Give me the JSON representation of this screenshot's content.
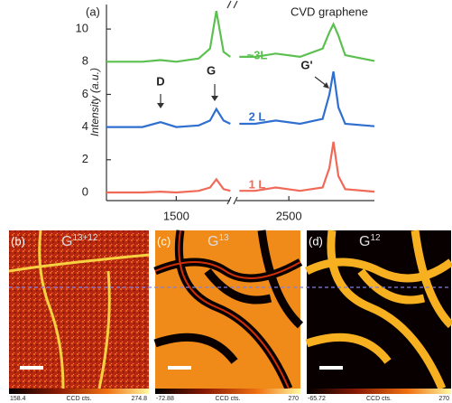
{
  "chart_data": {
    "type": "line",
    "panel_label": "(a)",
    "title": "CVD graphene",
    "ylabel": "Intensity (a.u.)",
    "annotations": [
      "D",
      "G",
      "G'"
    ],
    "x": [
      880,
      1200,
      1360,
      1500,
      1700,
      1800,
      1856,
      1920,
      1980,
      2000,
      2060,
      2200,
      2384,
      2600,
      2800,
      2860,
      2896,
      2940,
      3000,
      3260
    ],
    "series": [
      {
        "name": "1 L",
        "color": "#f06a58",
        "values": [
          0,
          0,
          0.05,
          0,
          0.1,
          0.3,
          0.8,
          0.2,
          0.1,
          null,
          0.1,
          0.1,
          0.3,
          0.1,
          0.3,
          1.5,
          3.1,
          1.0,
          0.2,
          0.05
        ]
      },
      {
        "name": "2 L",
        "color": "#2f6fd0",
        "values": [
          4,
          4,
          4.3,
          4,
          4.1,
          4.4,
          5.1,
          4.4,
          4.2,
          null,
          4.2,
          4.2,
          4.4,
          4.2,
          4.5,
          6,
          7.4,
          5.2,
          4.2,
          4.05
        ]
      },
      {
        "name": "~3L",
        "color": "#5cc050",
        "values": [
          8,
          8,
          8.1,
          8,
          8.2,
          8.8,
          11.1,
          8.6,
          8.3,
          null,
          8.3,
          8.3,
          8.5,
          8.3,
          8.8,
          9.8,
          10.3,
          9.6,
          8.4,
          8.05
        ]
      }
    ],
    "xlim": [
      880,
      3260
    ],
    "ylim": [
      -0.5,
      11.5
    ],
    "xticks": [
      1500,
      2500
    ],
    "yticks": [
      0,
      2,
      4,
      6,
      8,
      10
    ]
  },
  "panels": [
    {
      "label": "(b)",
      "title": "G",
      "superscript": "13+12",
      "colorbar": {
        "min": "158.4",
        "unit": "CCD cts.",
        "max": "274.8"
      }
    },
    {
      "label": "(c)",
      "title": "G",
      "superscript": "13",
      "colorbar": {
        "min": "-72.88",
        "unit": "CCD cts.",
        "max": "270"
      }
    },
    {
      "label": "(d)",
      "title": "G",
      "superscript": "12",
      "colorbar": {
        "min": "-65.72",
        "unit": "CCD cts.",
        "max": "270"
      }
    }
  ]
}
